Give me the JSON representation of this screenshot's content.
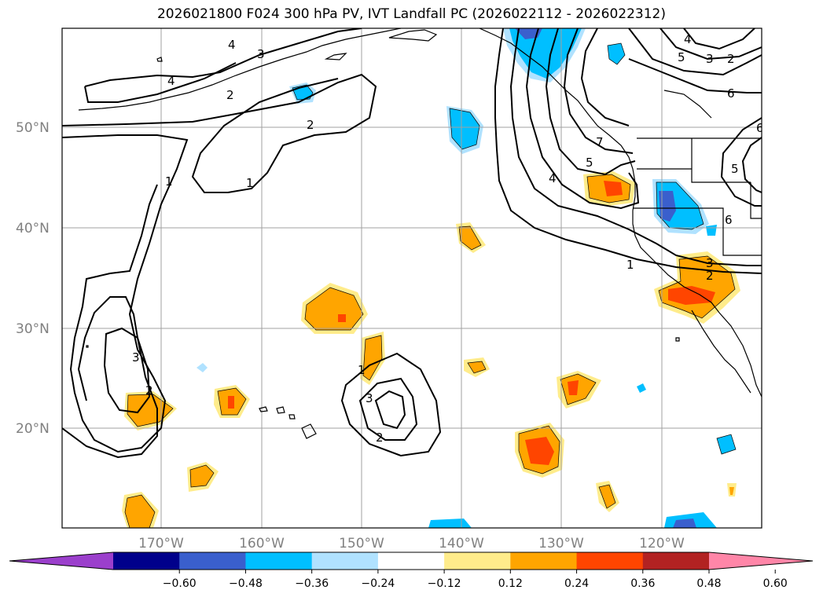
{
  "title": "2026021800 F024 300 hPa PV, IVT Landfall PC (2026022112 - 2026022312)",
  "lat_labels": [
    "50°N",
    "40°N",
    "30°N",
    "20°N"
  ],
  "lon_labels": [
    "170°W",
    "160°W",
    "150°W",
    "140°W",
    "130°W",
    "120°W"
  ],
  "pv_contour_labels": [
    "1",
    "2",
    "3",
    "4",
    "5",
    "6",
    "7"
  ],
  "colorbar": {
    "ticks": [
      "−0.60",
      "−0.48",
      "−0.36",
      "−0.24",
      "−0.12",
      "0.12",
      "0.24",
      "0.36",
      "0.48",
      "0.60"
    ],
    "colors": [
      "#9b3fcc",
      "#00008b",
      "#3a5fcd",
      "#00bfff",
      "#b0e2ff",
      "#ffffff",
      "#ffec8b",
      "#ffa500",
      "#ff4500",
      "#b22222",
      "#ff86a8"
    ]
  }
}
